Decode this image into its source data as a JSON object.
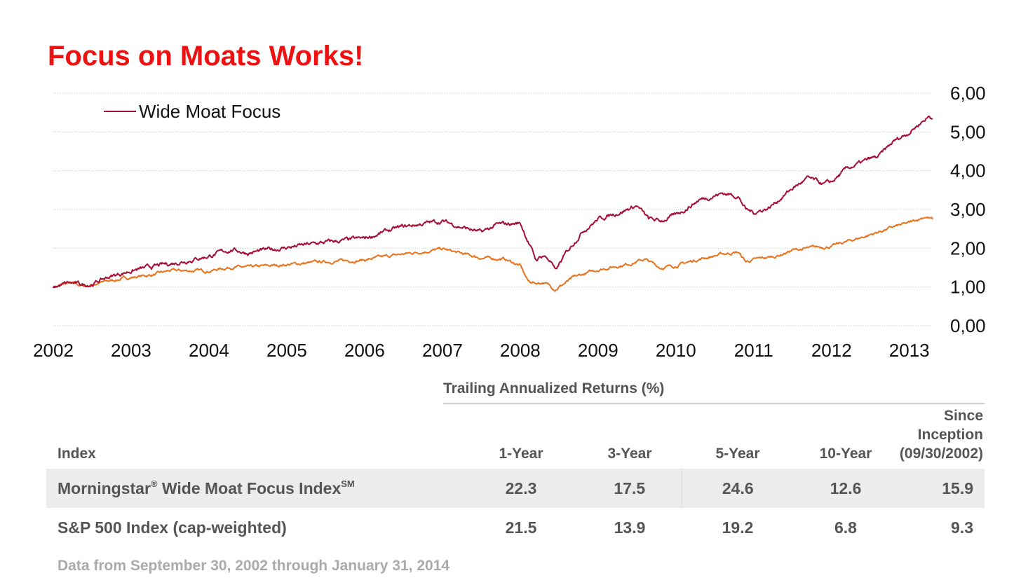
{
  "title": "Focus on Moats Works!",
  "chart_data": {
    "type": "line",
    "title": "",
    "xlabel": "",
    "ylabel": "",
    "ylim": [
      0,
      6
    ],
    "yticks": [
      "0,00",
      "1,00",
      "2,00",
      "3,00",
      "4,00",
      "5,00",
      "6,00"
    ],
    "xticks": [
      "2002",
      "2003",
      "2004",
      "2005",
      "2006",
      "2007",
      "2008",
      "2009",
      "2010",
      "2011",
      "2012",
      "2013"
    ],
    "y_axis_side": "right",
    "grid": true,
    "legend_position": "top-left",
    "series": [
      {
        "name": "Wide Moat Focus",
        "color": "#a50f36",
        "points": [
          [
            2002.0,
            1.0
          ],
          [
            2002.2,
            1.1
          ],
          [
            2002.4,
            1.05
          ],
          [
            2002.5,
            1.08
          ],
          [
            2002.7,
            1.25
          ],
          [
            2003.0,
            1.42
          ],
          [
            2003.5,
            1.6
          ],
          [
            2004.0,
            1.8
          ],
          [
            2004.3,
            1.97
          ],
          [
            2004.5,
            1.88
          ],
          [
            2005.0,
            2.02
          ],
          [
            2005.5,
            2.15
          ],
          [
            2006.0,
            2.25
          ],
          [
            2006.3,
            2.45
          ],
          [
            2006.5,
            2.55
          ],
          [
            2006.8,
            2.65
          ],
          [
            2007.0,
            2.7
          ],
          [
            2007.3,
            2.52
          ],
          [
            2007.5,
            2.4
          ],
          [
            2007.7,
            2.6
          ],
          [
            2008.0,
            2.65
          ],
          [
            2008.1,
            2.2
          ],
          [
            2008.2,
            1.7
          ],
          [
            2008.3,
            1.82
          ],
          [
            2008.4,
            1.65
          ],
          [
            2008.45,
            1.4
          ],
          [
            2008.6,
            1.9
          ],
          [
            2008.8,
            2.45
          ],
          [
            2009.0,
            2.75
          ],
          [
            2009.3,
            2.95
          ],
          [
            2009.5,
            3.1
          ],
          [
            2009.65,
            2.75
          ],
          [
            2009.8,
            2.7
          ],
          [
            2010.0,
            2.85
          ],
          [
            2010.3,
            3.25
          ],
          [
            2010.6,
            3.42
          ],
          [
            2010.8,
            3.35
          ],
          [
            2010.9,
            3.0
          ],
          [
            2011.0,
            2.92
          ],
          [
            2011.2,
            3.05
          ],
          [
            2011.5,
            3.55
          ],
          [
            2011.7,
            3.8
          ],
          [
            2011.9,
            3.65
          ],
          [
            2012.0,
            3.7
          ],
          [
            2012.2,
            4.05
          ],
          [
            2012.5,
            4.3
          ],
          [
            2012.6,
            4.35
          ],
          [
            2012.8,
            4.75
          ],
          [
            2013.0,
            5.0
          ],
          [
            2013.15,
            5.25
          ],
          [
            2013.25,
            5.4
          ],
          [
            2013.3,
            5.35
          ]
        ]
      },
      {
        "name": "S&P 500 Index",
        "color": "#e8731c",
        "points": [
          [
            2002.0,
            1.0
          ],
          [
            2002.2,
            1.1
          ],
          [
            2002.4,
            1.02
          ],
          [
            2002.7,
            1.15
          ],
          [
            2003.0,
            1.25
          ],
          [
            2003.3,
            1.32
          ],
          [
            2003.5,
            1.42
          ],
          [
            2004.0,
            1.42
          ],
          [
            2004.3,
            1.52
          ],
          [
            2004.5,
            1.5
          ],
          [
            2005.0,
            1.58
          ],
          [
            2005.5,
            1.65
          ],
          [
            2006.0,
            1.7
          ],
          [
            2006.5,
            1.85
          ],
          [
            2007.0,
            1.98
          ],
          [
            2007.2,
            1.88
          ],
          [
            2007.5,
            1.75
          ],
          [
            2007.8,
            1.72
          ],
          [
            2008.0,
            1.55
          ],
          [
            2008.1,
            1.15
          ],
          [
            2008.2,
            1.1
          ],
          [
            2008.3,
            1.12
          ],
          [
            2008.45,
            0.95
          ],
          [
            2008.7,
            1.25
          ],
          [
            2009.0,
            1.45
          ],
          [
            2009.4,
            1.6
          ],
          [
            2009.6,
            1.72
          ],
          [
            2009.8,
            1.5
          ],
          [
            2010.0,
            1.55
          ],
          [
            2010.3,
            1.72
          ],
          [
            2010.6,
            1.85
          ],
          [
            2010.8,
            1.9
          ],
          [
            2010.9,
            1.65
          ],
          [
            2011.0,
            1.7
          ],
          [
            2011.3,
            1.8
          ],
          [
            2011.5,
            1.95
          ],
          [
            2011.8,
            2.02
          ],
          [
            2012.0,
            2.05
          ],
          [
            2012.5,
            2.35
          ],
          [
            2012.8,
            2.55
          ],
          [
            2013.0,
            2.65
          ],
          [
            2013.2,
            2.82
          ],
          [
            2013.3,
            2.75
          ]
        ]
      }
    ]
  },
  "returns": {
    "header": "Trailing Annualized Returns (%)",
    "columns": {
      "index": "Index",
      "y1": "1-Year",
      "y3": "3-Year",
      "y5": "5-Year",
      "y10": "10-Year",
      "since_1": "Since",
      "since_2": "Inception",
      "since_3": "(09/30/2002)"
    },
    "rows": [
      {
        "name": "Morningstar",
        "reg": "®",
        "name_mid": " Wide Moat Focus Index",
        "sm": "SM",
        "y1": "22.3",
        "y3": "17.5",
        "y5": "24.6",
        "y10": "12.6",
        "since": "15.9"
      },
      {
        "name": "S&P 500 Index (cap-weighted)",
        "y1": "21.5",
        "y3": "13.9",
        "y5": "19.2",
        "y10": "6.8",
        "since": "9.3"
      }
    ]
  },
  "footnote": "Data from September 30, 2002 through January 31, 2014"
}
